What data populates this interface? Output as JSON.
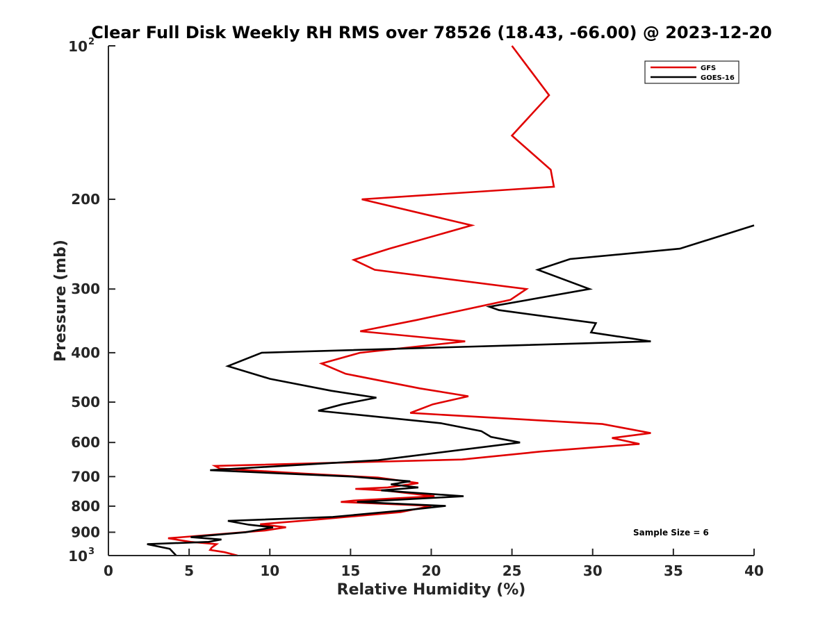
{
  "chart_data": {
    "type": "line",
    "title": "Clear Full Disk Weekly RH RMS over 78526 (18.43, -66.00) @ 2023-12-20",
    "xlabel": "Relative Humidity (%)",
    "ylabel": "Pressure (mb)",
    "xlim": [
      0,
      40
    ],
    "ylim": [
      100,
      1000
    ],
    "y_scale": "log",
    "y_reversed": true,
    "x_ticks": [
      "0",
      "5",
      "10",
      "15",
      "20",
      "25",
      "30",
      "35",
      "40"
    ],
    "y_ticks": [
      {
        "value": 100,
        "base": "10",
        "exp": "2"
      },
      {
        "value": 200,
        "label": "200"
      },
      {
        "value": 300,
        "label": "300"
      },
      {
        "value": 400,
        "label": "400"
      },
      {
        "value": 500,
        "label": "500"
      },
      {
        "value": 600,
        "label": "600"
      },
      {
        "value": 700,
        "label": "700"
      },
      {
        "value": 800,
        "label": "800"
      },
      {
        "value": 900,
        "label": "900"
      },
      {
        "value": 1000,
        "base": "10",
        "exp": "3"
      }
    ],
    "grid": false,
    "legend_position": "top-right",
    "annotation": "Sample Size = 6",
    "series": [
      {
        "name": "GFS",
        "color": "#e00000",
        "points": [
          [
            25.0,
            100
          ],
          [
            27.3,
            125
          ],
          [
            25.0,
            150
          ],
          [
            27.4,
            175
          ],
          [
            27.6,
            189
          ],
          [
            15.7,
            200
          ],
          [
            22.5,
            225
          ],
          [
            17.4,
            250
          ],
          [
            15.2,
            263
          ],
          [
            16.5,
            275
          ],
          [
            25.9,
            300
          ],
          [
            24.9,
            315
          ],
          [
            19.1,
            345
          ],
          [
            15.6,
            363
          ],
          [
            22.1,
            380
          ],
          [
            15.6,
            400
          ],
          [
            13.2,
            420
          ],
          [
            14.7,
            440
          ],
          [
            19.3,
            470
          ],
          [
            22.3,
            487
          ],
          [
            20.1,
            505
          ],
          [
            18.7,
            525
          ],
          [
            30.6,
            552
          ],
          [
            33.6,
            575
          ],
          [
            31.2,
            588
          ],
          [
            32.9,
            604
          ],
          [
            26.8,
            625
          ],
          [
            21.9,
            648
          ],
          [
            6.6,
            667
          ],
          [
            6.9,
            675
          ],
          [
            11.9,
            690
          ],
          [
            16.7,
            703
          ],
          [
            19.2,
            721
          ],
          [
            17.3,
            735
          ],
          [
            15.3,
            740
          ],
          [
            17.1,
            745
          ],
          [
            20.2,
            765
          ],
          [
            15.2,
            780
          ],
          [
            14.4,
            785
          ],
          [
            20.0,
            799
          ],
          [
            18.1,
            822
          ],
          [
            12.9,
            850
          ],
          [
            9.4,
            868
          ],
          [
            11.0,
            880
          ],
          [
            9.7,
            893
          ],
          [
            3.7,
            925
          ],
          [
            5.1,
            940
          ],
          [
            6.7,
            950
          ],
          [
            6.4,
            965
          ],
          [
            6.3,
            975
          ],
          [
            7.2,
            985
          ],
          [
            8.0,
            1000
          ]
        ]
      },
      {
        "name": "GOES-16",
        "color": "#000000",
        "points": [
          [
            40.0,
            225
          ],
          [
            35.4,
            250
          ],
          [
            28.6,
            262
          ],
          [
            26.6,
            275
          ],
          [
            29.8,
            300
          ],
          [
            23.6,
            325
          ],
          [
            24.2,
            330
          ],
          [
            30.2,
            350
          ],
          [
            29.9,
            365
          ],
          [
            33.6,
            380
          ],
          [
            9.5,
            400
          ],
          [
            7.4,
            425
          ],
          [
            10.0,
            450
          ],
          [
            13.8,
            475
          ],
          [
            16.6,
            490
          ],
          [
            14.5,
            505
          ],
          [
            13.0,
            520
          ],
          [
            20.6,
            550
          ],
          [
            23.1,
            570
          ],
          [
            23.7,
            585
          ],
          [
            25.5,
            600
          ],
          [
            16.7,
            650
          ],
          [
            6.3,
            680
          ],
          [
            15.1,
            700
          ],
          [
            18.7,
            715
          ],
          [
            17.5,
            725
          ],
          [
            19.2,
            735
          ],
          [
            16.9,
            745
          ],
          [
            22.0,
            765
          ],
          [
            15.4,
            785
          ],
          [
            20.9,
            799
          ],
          [
            18.4,
            815
          ],
          [
            13.9,
            840
          ],
          [
            7.4,
            855
          ],
          [
            8.7,
            870
          ],
          [
            10.2,
            880
          ],
          [
            8.5,
            900
          ],
          [
            5.1,
            920
          ],
          [
            7.0,
            930
          ],
          [
            6.2,
            940
          ],
          [
            2.4,
            950
          ],
          [
            3.8,
            970
          ],
          [
            4.2,
            1000
          ]
        ]
      }
    ]
  }
}
